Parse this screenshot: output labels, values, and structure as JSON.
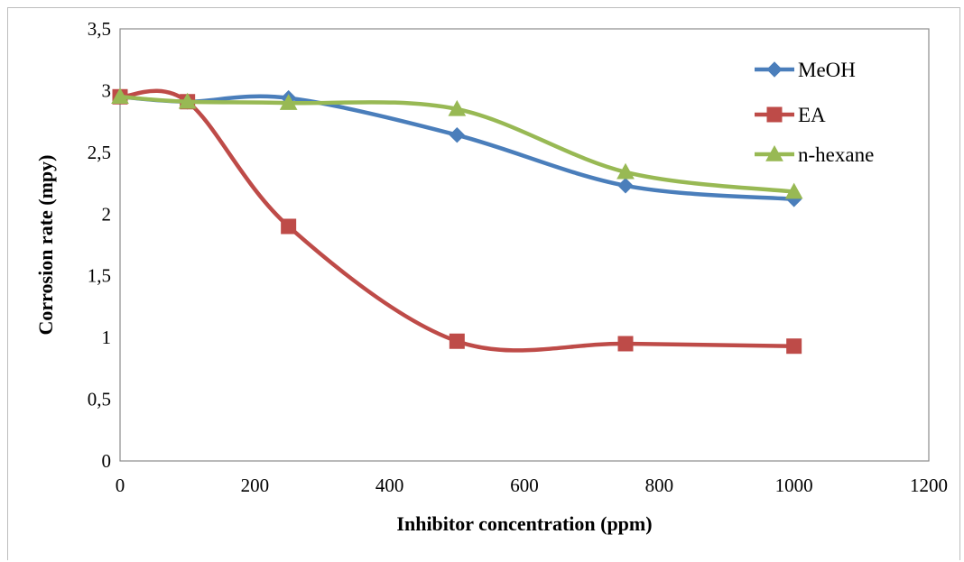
{
  "chart_data": {
    "type": "line",
    "title": "",
    "xlabel": "Inhibitor concentration (ppm)",
    "ylabel": "Corrosion rate (mpy)",
    "xlim": [
      0,
      1200
    ],
    "ylim": [
      0,
      3.5
    ],
    "xticks": [
      "0",
      "200",
      "400",
      "600",
      "800",
      "1000",
      "1200"
    ],
    "yticks": [
      "0",
      "0,5",
      "1",
      "1,5",
      "2",
      "2,5",
      "3",
      "3,5"
    ],
    "grid": false,
    "legend_position": "top-right",
    "smoothed": true,
    "series": [
      {
        "name": "MeOH",
        "color": "#4a7ebb",
        "marker": "diamond",
        "x": [
          0,
          100,
          250,
          500,
          750,
          1000
        ],
        "y": [
          2.95,
          2.91,
          2.94,
          2.64,
          2.23,
          2.12
        ]
      },
      {
        "name": "EA",
        "color": "#be4b48",
        "marker": "square",
        "x": [
          0,
          100,
          250,
          500,
          750,
          1000
        ],
        "y": [
          2.95,
          2.91,
          1.9,
          0.97,
          0.95,
          0.93
        ]
      },
      {
        "name": "n-hexane",
        "color": "#98b954",
        "marker": "triangle",
        "x": [
          0,
          100,
          250,
          500,
          750,
          1000
        ],
        "y": [
          2.95,
          2.91,
          2.9,
          2.85,
          2.34,
          2.18
        ]
      }
    ]
  }
}
